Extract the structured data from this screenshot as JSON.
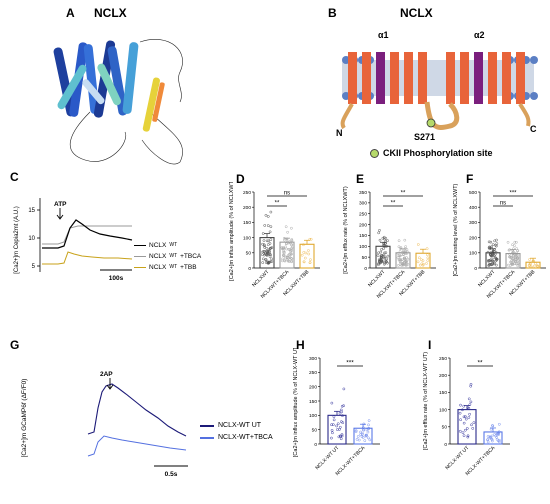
{
  "panels": {
    "A": {
      "letter": "A",
      "title": "NCLX"
    },
    "B": {
      "letter": "B",
      "title": "NCLX",
      "alpha1": "α1",
      "alpha2": "α2",
      "n_term": "N",
      "c_term": "C",
      "site": "S271",
      "legend": "CKII Phosphorylation site",
      "colors": {
        "helix": "#e8643a",
        "alpha": "#7b1f7d",
        "membrane": "#cfd8e6",
        "lipid": "#5b7fc4",
        "loop": "#d9a15b",
        "site": "#b5d96a"
      }
    },
    "C": {
      "letter": "C",
      "ylabel": "[Ca2+]m Cepia2mt (A.U.)",
      "yticks": [
        "5",
        "10",
        "15"
      ],
      "stim": "ATP",
      "scalebar": "100s",
      "legend": [
        {
          "name": "NCLX",
          "sup": "WT",
          "color": "#000000"
        },
        {
          "name": "NCLX",
          "sup": "WT",
          "suffix": "+TBCA",
          "color": "#9a9a9a"
        },
        {
          "name": "NCLX",
          "sup": "WT",
          "suffix": "+TBB",
          "color": "#c8a21a"
        }
      ]
    },
    "D": {
      "letter": "D",
      "ylabel": "[Ca2+]m influx amplitude (% of NCLXWT)",
      "yticks": [
        "0",
        "50",
        "100",
        "150",
        "200",
        "250"
      ],
      "sig1": "**",
      "sig2": "ns",
      "groups": [
        "NCLXWT",
        "NCLXWT+TBCA",
        "NCLXWT+TBB"
      ]
    },
    "E": {
      "letter": "E",
      "ylabel": "[Ca2+]m efflux rate (% of NCLXWT)",
      "yticks": [
        "0",
        "50",
        "100",
        "150",
        "200",
        "250",
        "300",
        "350"
      ],
      "sig1": "**",
      "sig2": "**",
      "groups": [
        "NCLXWT",
        "NCLXWT+TBCA",
        "NCLXWT+TBB"
      ]
    },
    "F": {
      "letter": "F",
      "ylabel": "[Ca2+]m resting level (% of NCLXWT)",
      "yticks": [
        "0",
        "100",
        "200",
        "300",
        "400",
        "500"
      ],
      "sig1": "ns",
      "sig2": "***",
      "groups": [
        "NCLXWT",
        "NCLXWT+TBCA",
        "NCLXWT+TBB"
      ]
    },
    "G": {
      "letter": "G",
      "ylabel": "[Ca2+]m GCaMP6f (ΔF/F0)",
      "stim": "2AP",
      "scalebar": "0.5s",
      "legend": [
        {
          "name": "NCLX-WT UT",
          "color": "#1c1a78"
        },
        {
          "name": "NCLX-WT+TBCA",
          "color": "#5470e0"
        }
      ]
    },
    "H": {
      "letter": "H",
      "ylabel": "[Ca2+]m influx amplitude (% of NCLX-WT UT)",
      "yticks": [
        "0",
        "50",
        "100",
        "150",
        "200",
        "250",
        "300"
      ],
      "sig": "***",
      "groups": [
        "NCLX-WT UT",
        "NCLX-WT+TBCA"
      ]
    },
    "I": {
      "letter": "I",
      "ylabel": "[Ca2+]m efflux rate (% of NCLX-WT UT)",
      "yticks": [
        "0",
        "50",
        "100",
        "150",
        "200",
        "250"
      ],
      "sig": "**",
      "groups": [
        "NCLX-WT UT",
        "NCLX-WT+TBCA"
      ]
    }
  },
  "chart_data": [
    {
      "type": "bar",
      "panel": "D",
      "categories": [
        "NCLXWT",
        "NCLXWT+TBCA",
        "NCLXWT+TBB"
      ],
      "values": [
        100,
        85,
        78
      ],
      "ylim": [
        0,
        250
      ]
    },
    {
      "type": "bar",
      "panel": "E",
      "categories": [
        "NCLXWT",
        "NCLXWT+TBCA",
        "NCLXWT+TBB"
      ],
      "values": [
        100,
        70,
        68
      ],
      "ylim": [
        0,
        350
      ]
    },
    {
      "type": "bar",
      "panel": "F",
      "categories": [
        "NCLXWT",
        "NCLXWT+TBCA",
        "NCLXWT+TBB"
      ],
      "values": [
        100,
        95,
        38
      ],
      "ylim": [
        0,
        500
      ]
    },
    {
      "type": "bar",
      "panel": "H",
      "categories": [
        "NCLX-WT UT",
        "NCLX-WT+TBCA"
      ],
      "values": [
        100,
        55
      ],
      "ylim": [
        0,
        300
      ]
    },
    {
      "type": "bar",
      "panel": "I",
      "categories": [
        "NCLX-WT UT",
        "NCLX-WT+TBCA"
      ],
      "values": [
        100,
        35
      ],
      "ylim": [
        0,
        250
      ]
    }
  ]
}
